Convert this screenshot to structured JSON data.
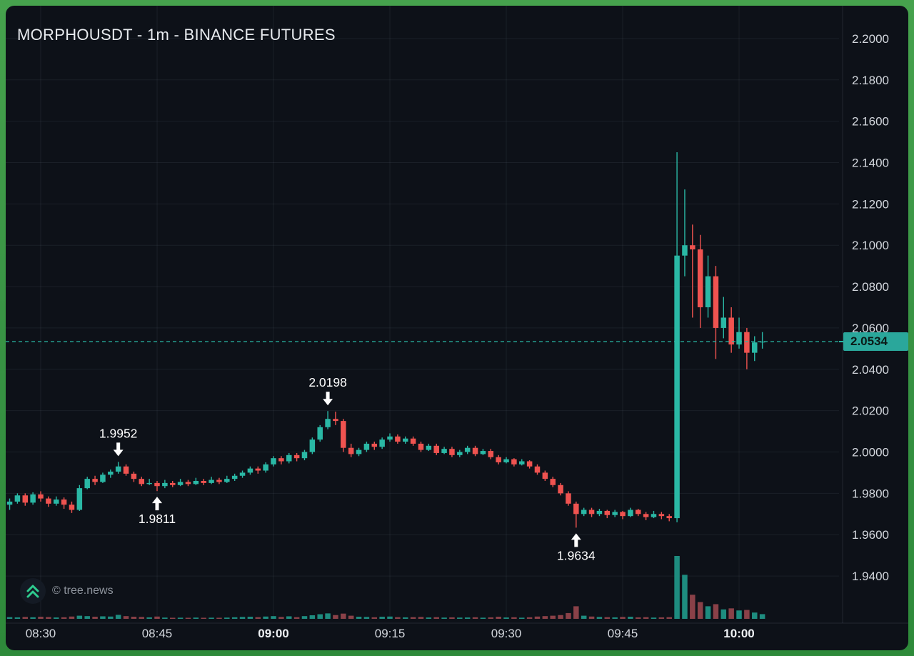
{
  "header": {
    "title": "MORPHOUSDT - 1m - BINANCE FUTURES"
  },
  "watermark": {
    "text": "© tree.news"
  },
  "colors": {
    "frame": "#3f9e4a",
    "bg": "#0d1118",
    "grid": "rgba(148,158,178,0.10)",
    "separator": "rgba(148,158,178,0.16)",
    "up": "#2ab8a5",
    "down": "#ef5350",
    "vol_up": "#1e8c7f",
    "vol_down": "#8a4148",
    "price_line": "#2ab8a5",
    "badge_bg": "#2aa79b",
    "badge_text": "#0b1b18",
    "axis_text": "#d3d7dd",
    "axis_text_bold": "#eef1f4",
    "title_text": "#e8ebef",
    "watermark_text": "#8e949d",
    "annotation": "#ffffff",
    "logo_bg": "#141a24",
    "logo_chevron": "#2ecc8f"
  },
  "price_axis": {
    "current": "2.0534",
    "labels": [
      "2.2000",
      "2.1800",
      "2.1600",
      "2.1400",
      "2.1200",
      "2.1000",
      "2.0800",
      "2.0600",
      "2.0400",
      "2.0200",
      "2.0000",
      "1.9800",
      "1.9600",
      "1.9400"
    ]
  },
  "time_axis": {
    "labels": [
      {
        "t": "08:30",
        "bold": false
      },
      {
        "t": "08:45",
        "bold": false
      },
      {
        "t": "09:00",
        "bold": true
      },
      {
        "t": "09:15",
        "bold": false
      },
      {
        "t": "09:30",
        "bold": false
      },
      {
        "t": "09:45",
        "bold": false
      },
      {
        "t": "10:00",
        "bold": true
      }
    ]
  },
  "annotations": [
    {
      "text": "1.9952",
      "time": "08:40",
      "price": 1.9952,
      "dir": "down"
    },
    {
      "text": "1.9811",
      "time": "08:45",
      "price": 1.9811,
      "dir": "up"
    },
    {
      "text": "2.0198",
      "time": "09:07",
      "price": 2.0198,
      "dir": "down"
    },
    {
      "text": "1.9634",
      "time": "09:39",
      "price": 1.9634,
      "dir": "up"
    }
  ],
  "chart_data": {
    "type": "candlestick",
    "title": "MORPHOUSDT - 1m - BINANCE FUTURES",
    "symbol": "MORPHOUSDT",
    "interval": "1m",
    "exchange": "BINANCE FUTURES",
    "current_price": 2.0534,
    "y_range": [
      1.93,
      2.21
    ],
    "x_range": [
      "08:26",
      "10:10"
    ],
    "grid": true,
    "legend_position": "none",
    "candles_format": [
      "time",
      "open",
      "high",
      "low",
      "close",
      "volume"
    ],
    "candles": [
      [
        "08:26",
        1.9745,
        1.9775,
        1.972,
        1.976,
        16
      ],
      [
        "08:27",
        1.976,
        1.98,
        1.975,
        1.979,
        14
      ],
      [
        "08:28",
        1.979,
        1.98,
        1.974,
        1.9755,
        18
      ],
      [
        "08:29",
        1.9755,
        1.9805,
        1.9745,
        1.9795,
        15
      ],
      [
        "08:30",
        1.9795,
        1.981,
        1.976,
        1.9775,
        20
      ],
      [
        "08:31",
        1.9775,
        1.9785,
        1.9735,
        1.975,
        17
      ],
      [
        "08:32",
        1.975,
        1.9785,
        1.974,
        1.977,
        13
      ],
      [
        "08:33",
        1.977,
        1.978,
        1.9725,
        1.9745,
        15
      ],
      [
        "08:34",
        1.9745,
        1.976,
        1.9705,
        1.972,
        22
      ],
      [
        "08:35",
        1.972,
        1.984,
        1.9715,
        1.9825,
        30
      ],
      [
        "08:36",
        1.9825,
        1.988,
        1.982,
        1.987,
        26
      ],
      [
        "08:37",
        1.987,
        1.9885,
        1.984,
        1.9855,
        20
      ],
      [
        "08:38",
        1.9855,
        1.99,
        1.985,
        1.989,
        24
      ],
      [
        "08:39",
        1.989,
        1.9915,
        1.9875,
        1.9905,
        22
      ],
      [
        "08:40",
        1.9905,
        1.9952,
        1.9895,
        1.993,
        38
      ],
      [
        "08:41",
        1.993,
        1.994,
        1.9885,
        1.9895,
        26
      ],
      [
        "08:42",
        1.9895,
        1.9905,
        1.9855,
        1.987,
        20
      ],
      [
        "08:43",
        1.987,
        1.988,
        1.9835,
        1.9845,
        18
      ],
      [
        "08:44",
        1.9845,
        1.987,
        1.984,
        1.985,
        14
      ],
      [
        "08:45",
        1.985,
        1.986,
        1.9811,
        1.9835,
        22
      ],
      [
        "08:46",
        1.9835,
        1.9865,
        1.9825,
        1.985,
        12
      ],
      [
        "08:47",
        1.985,
        1.986,
        1.983,
        1.984,
        10
      ],
      [
        "08:48",
        1.984,
        1.987,
        1.9835,
        1.9855,
        11
      ],
      [
        "08:49",
        1.9855,
        1.9865,
        1.9835,
        1.9845,
        9
      ],
      [
        "08:50",
        1.9845,
        1.9875,
        1.984,
        1.986,
        12
      ],
      [
        "08:51",
        1.986,
        1.987,
        1.984,
        1.985,
        10
      ],
      [
        "08:52",
        1.985,
        1.988,
        1.9845,
        1.9865,
        11
      ],
      [
        "08:53",
        1.9865,
        1.9875,
        1.9845,
        1.9855,
        9
      ],
      [
        "08:54",
        1.9855,
        1.9885,
        1.985,
        1.987,
        12
      ],
      [
        "08:55",
        1.987,
        1.9895,
        1.986,
        1.9885,
        15
      ],
      [
        "08:56",
        1.9885,
        1.991,
        1.9875,
        1.99,
        18
      ],
      [
        "08:57",
        1.99,
        1.993,
        1.989,
        1.992,
        20
      ],
      [
        "08:58",
        1.992,
        1.993,
        1.9895,
        1.991,
        16
      ],
      [
        "08:59",
        1.991,
        1.995,
        1.99,
        1.994,
        22
      ],
      [
        "09:00",
        1.994,
        1.998,
        1.993,
        1.997,
        26
      ],
      [
        "09:01",
        1.997,
        1.998,
        1.994,
        1.9955,
        18
      ],
      [
        "09:02",
        1.9955,
        1.9995,
        1.9945,
        1.9985,
        24
      ],
      [
        "09:03",
        1.9985,
        1.9995,
        1.9955,
        1.997,
        16
      ],
      [
        "09:04",
        1.997,
        2.001,
        1.996,
        2.0,
        26
      ],
      [
        "09:05",
        2.0,
        2.007,
        1.999,
        2.006,
        34
      ],
      [
        "09:06",
        2.006,
        2.013,
        2.005,
        2.012,
        44
      ],
      [
        "09:07",
        2.012,
        2.0198,
        2.011,
        2.016,
        52
      ],
      [
        "09:08",
        2.016,
        2.0195,
        2.013,
        2.015,
        36
      ],
      [
        "09:09",
        2.015,
        2.016,
        2.0,
        2.002,
        50
      ],
      [
        "09:10",
        2.002,
        2.004,
        1.9975,
        1.999,
        30
      ],
      [
        "09:11",
        1.999,
        2.002,
        1.998,
        2.001,
        20
      ],
      [
        "09:12",
        2.001,
        2.005,
        2.0,
        2.004,
        18
      ],
      [
        "09:13",
        2.004,
        2.005,
        2.001,
        2.0025,
        15
      ],
      [
        "09:14",
        2.0025,
        2.007,
        2.0015,
        2.006,
        20
      ],
      [
        "09:15",
        2.006,
        2.009,
        2.005,
        2.0075,
        22
      ],
      [
        "09:16",
        2.0075,
        2.0085,
        2.004,
        2.005,
        16
      ],
      [
        "09:17",
        2.005,
        2.0075,
        2.004,
        2.0065,
        14
      ],
      [
        "09:18",
        2.0065,
        2.0075,
        2.003,
        2.004,
        16
      ],
      [
        "09:19",
        2.004,
        2.005,
        2.0,
        2.001,
        18
      ],
      [
        "09:20",
        2.001,
        2.004,
        2.0005,
        2.003,
        13
      ],
      [
        "09:21",
        2.003,
        2.004,
        1.9985,
        1.9995,
        16
      ],
      [
        "09:22",
        1.9995,
        2.0025,
        1.999,
        2.0015,
        12
      ],
      [
        "09:23",
        2.0015,
        2.0025,
        1.9975,
        1.9985,
        14
      ],
      [
        "09:24",
        1.9985,
        2.001,
        1.9975,
        2.0,
        12
      ],
      [
        "09:25",
        2.0,
        2.003,
        1.999,
        2.002,
        13
      ],
      [
        "09:26",
        2.002,
        2.003,
        1.998,
        1.999,
        15
      ],
      [
        "09:27",
        1.999,
        2.0015,
        1.9985,
        2.0005,
        11
      ],
      [
        "09:28",
        2.0005,
        2.0015,
        1.9965,
        1.9975,
        14
      ],
      [
        "09:29",
        1.9975,
        1.9985,
        1.994,
        1.995,
        20
      ],
      [
        "09:30",
        1.995,
        1.9975,
        1.9945,
        1.9965,
        13
      ],
      [
        "09:31",
        1.9965,
        1.997,
        1.993,
        1.994,
        15
      ],
      [
        "09:32",
        1.994,
        1.9965,
        1.9935,
        1.9955,
        11
      ],
      [
        "09:33",
        1.9955,
        1.996,
        1.992,
        1.993,
        15
      ],
      [
        "09:34",
        1.993,
        1.994,
        1.989,
        1.99,
        22
      ],
      [
        "09:35",
        1.99,
        1.991,
        1.986,
        1.987,
        26
      ],
      [
        "09:36",
        1.987,
        1.988,
        1.983,
        1.984,
        30
      ],
      [
        "09:37",
        1.984,
        1.985,
        1.979,
        1.98,
        36
      ],
      [
        "09:38",
        1.98,
        1.981,
        1.974,
        1.975,
        55
      ],
      [
        "09:39",
        1.975,
        1.976,
        1.9634,
        1.97,
        120
      ],
      [
        "09:40",
        1.97,
        1.973,
        1.969,
        1.972,
        30
      ],
      [
        "09:41",
        1.972,
        1.973,
        1.9685,
        1.97,
        22
      ],
      [
        "09:42",
        1.97,
        1.9725,
        1.969,
        1.9715,
        18
      ],
      [
        "09:43",
        1.9715,
        1.972,
        1.968,
        1.9695,
        16
      ],
      [
        "09:44",
        1.9695,
        1.972,
        1.9685,
        1.971,
        14
      ],
      [
        "09:45",
        1.971,
        1.9715,
        1.9675,
        1.969,
        18
      ],
      [
        "09:46",
        1.969,
        1.973,
        1.9685,
        1.972,
        20
      ],
      [
        "09:47",
        1.972,
        1.9725,
        1.969,
        1.97,
        14
      ],
      [
        "09:48",
        1.97,
        1.971,
        1.967,
        1.9685,
        16
      ],
      [
        "09:49",
        1.9685,
        1.9715,
        1.968,
        1.97,
        12
      ],
      [
        "09:50",
        1.97,
        1.971,
        1.9675,
        1.969,
        14
      ],
      [
        "09:51",
        1.969,
        1.97,
        1.9665,
        1.968,
        16
      ],
      [
        "09:52",
        1.968,
        2.145,
        1.966,
        2.095,
        600
      ],
      [
        "09:53",
        2.095,
        2.127,
        2.085,
        2.1,
        420
      ],
      [
        "09:54",
        2.1,
        2.11,
        2.065,
        2.098,
        230
      ],
      [
        "09:55",
        2.098,
        2.105,
        2.06,
        2.07,
        160
      ],
      [
        "09:56",
        2.07,
        2.095,
        2.065,
        2.085,
        120
      ],
      [
        "09:57",
        2.085,
        2.09,
        2.045,
        2.06,
        140
      ],
      [
        "09:58",
        2.06,
        2.075,
        2.055,
        2.065,
        90
      ],
      [
        "09:59",
        2.065,
        2.07,
        2.048,
        2.052,
        100
      ],
      [
        "10:00",
        2.052,
        2.065,
        2.05,
        2.058,
        80
      ],
      [
        "10:01",
        2.058,
        2.06,
        2.04,
        2.048,
        85
      ],
      [
        "10:02",
        2.048,
        2.056,
        2.044,
        2.053,
        60
      ],
      [
        "10:03",
        2.053,
        2.058,
        2.05,
        2.0534,
        45
      ]
    ]
  }
}
